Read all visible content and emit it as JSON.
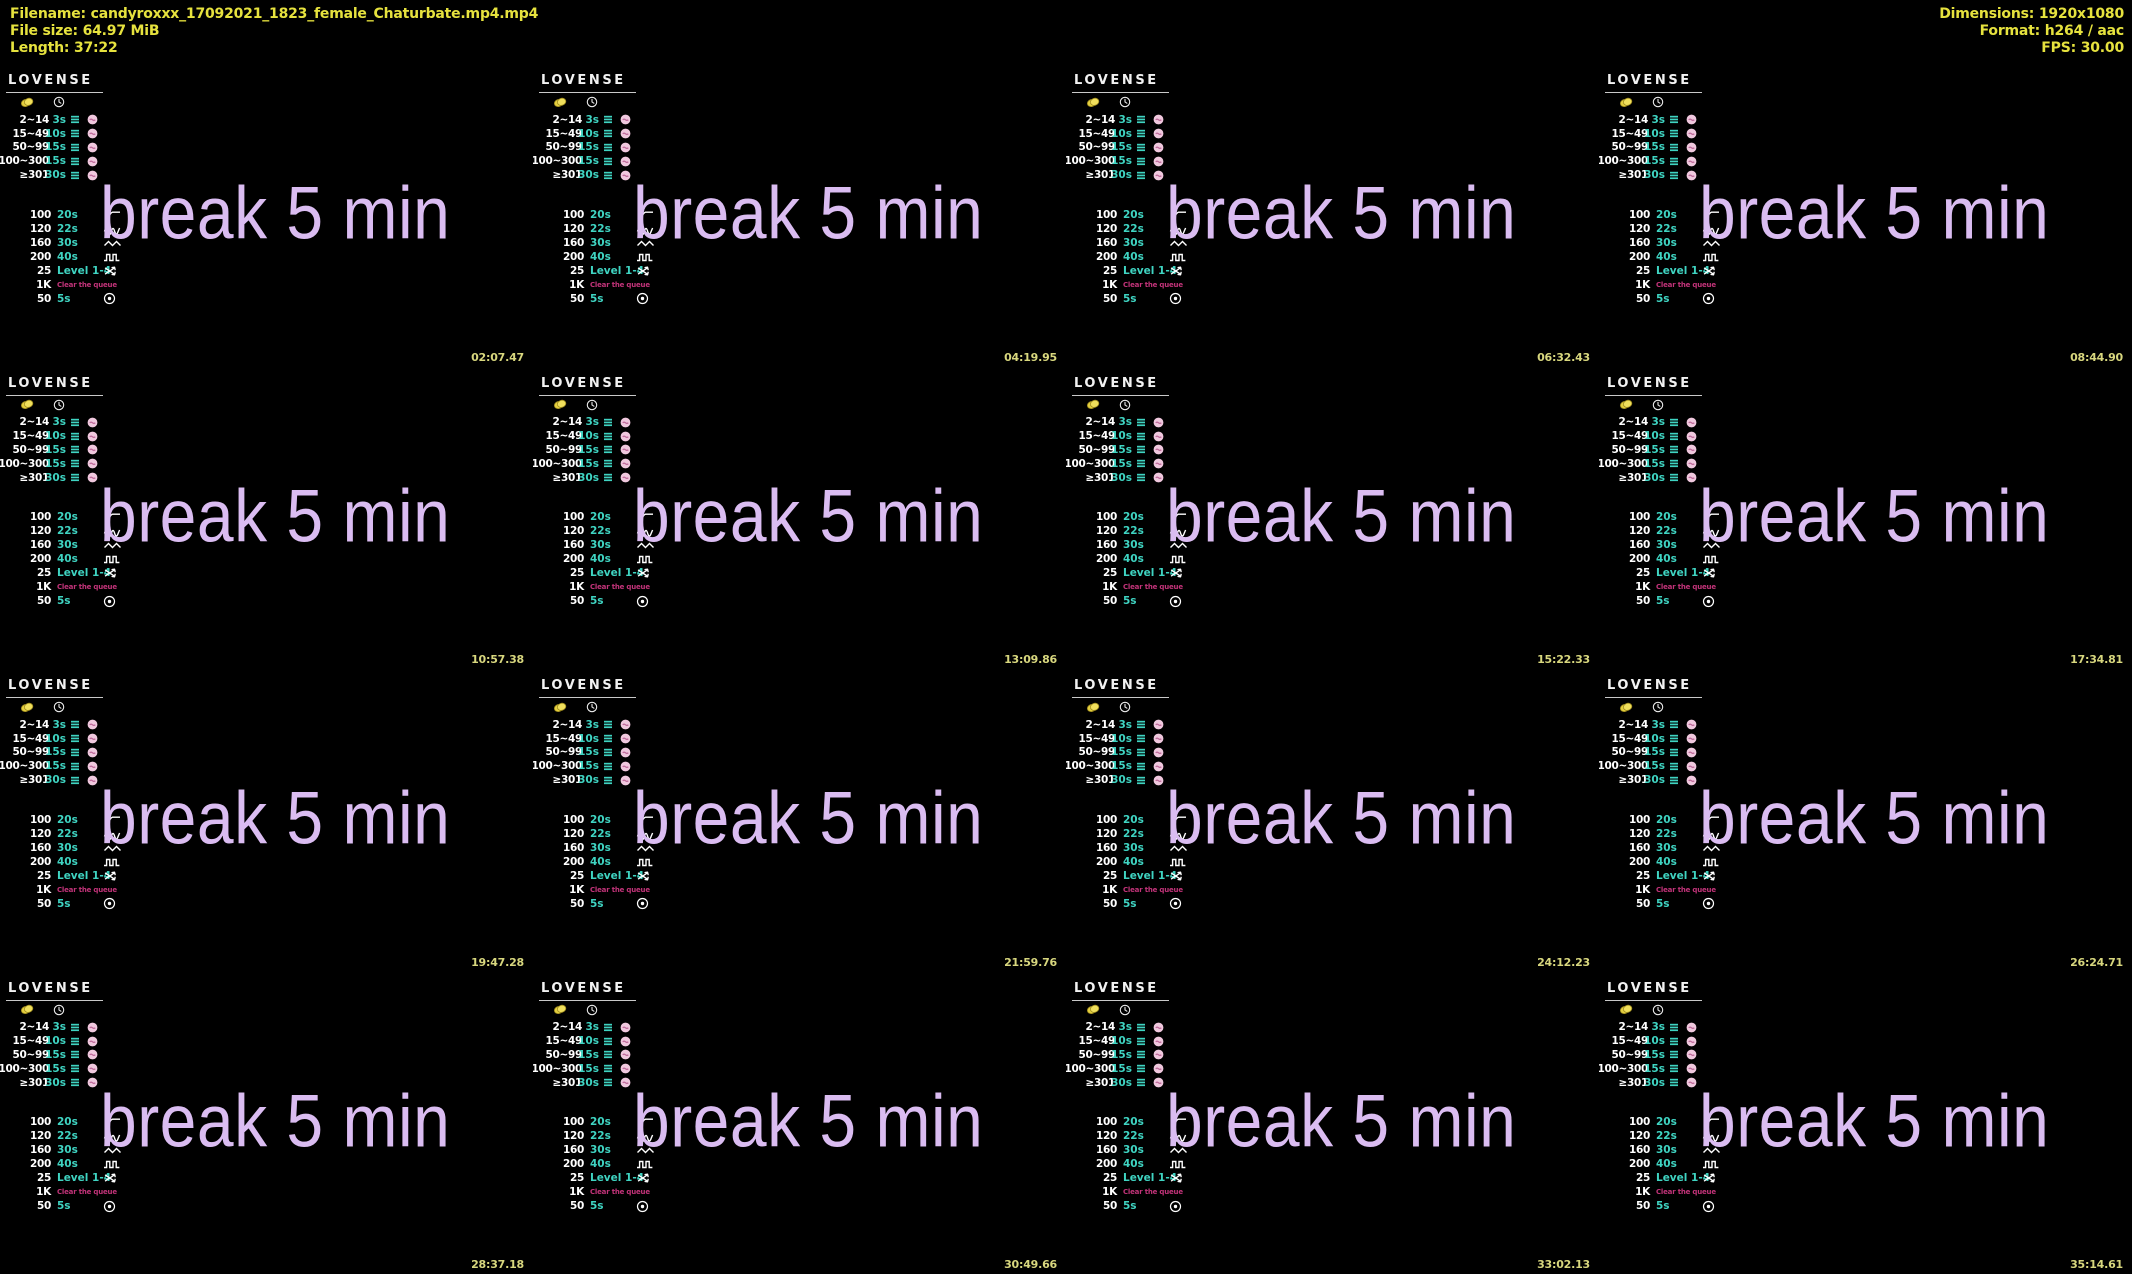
{
  "header": {
    "left": [
      {
        "label": "Filename:",
        "value": "candyroxxx_17092021_1823_female_Chaturbate.mp4.mp4"
      },
      {
        "label": "File size:",
        "value": "64.97 MiB"
      },
      {
        "label": "Length:",
        "value": "37:22"
      }
    ],
    "right": [
      {
        "label": "Dimensions:",
        "value": "1920x1080"
      },
      {
        "label": "Format:",
        "value": "h264 / aac"
      },
      {
        "label": "FPS:",
        "value": "30.00"
      }
    ]
  },
  "frame": {
    "break_text": "break 5 min"
  },
  "panel": {
    "logo": "LOVENSE",
    "icons": [
      "coin-icon",
      "clock-icon"
    ],
    "queue_rows": [
      {
        "amount": "2~14",
        "duration": "3s"
      },
      {
        "amount": "15~49",
        "duration": "10s"
      },
      {
        "amount": "50~99",
        "duration": "15s"
      },
      {
        "amount": "100~300",
        "duration": "15s"
      },
      {
        "amount": "≥301",
        "duration": "30s"
      }
    ],
    "pattern_rows": [
      {
        "amount": "100",
        "label": "20s",
        "icon": "ramp-wave-icon",
        "special": false
      },
      {
        "amount": "120",
        "label": "22s",
        "icon": "random-wave-icon",
        "special": false
      },
      {
        "amount": "160",
        "label": "30s",
        "icon": "zigzag-wave-icon",
        "special": false
      },
      {
        "amount": "200",
        "label": "40s",
        "icon": "pulse-wave-icon",
        "special": false
      },
      {
        "amount": "25",
        "label": "Level 1-4",
        "icon": "shuffle-icon",
        "special": false
      },
      {
        "amount": "1K",
        "label": "Clear the queue",
        "icon": "",
        "special": true
      },
      {
        "amount": "50",
        "label": "5s",
        "icon": "target-icon",
        "special": false
      }
    ]
  },
  "grid": {
    "timestamps": [
      "02:07.47",
      "04:19.95",
      "06:32.43",
      "08:44.90",
      "10:57.38",
      "13:09.86",
      "15:22.33",
      "17:34.81",
      "19:47.28",
      "21:59.76",
      "24:12.23",
      "26:24.71",
      "28:37.18",
      "30:49.66",
      "33:02.13",
      "35:14.61"
    ]
  },
  "colors": {
    "background": "#000000",
    "header_text": "#e6e23e",
    "timestamp_text": "#d8d77e",
    "break_text": "#dabcf1",
    "teal_accent": "#3fd4c2",
    "magenta_accent": "#c23379",
    "pink_icon": "#f0c8de",
    "coin_yellow": "#ecd84e"
  }
}
